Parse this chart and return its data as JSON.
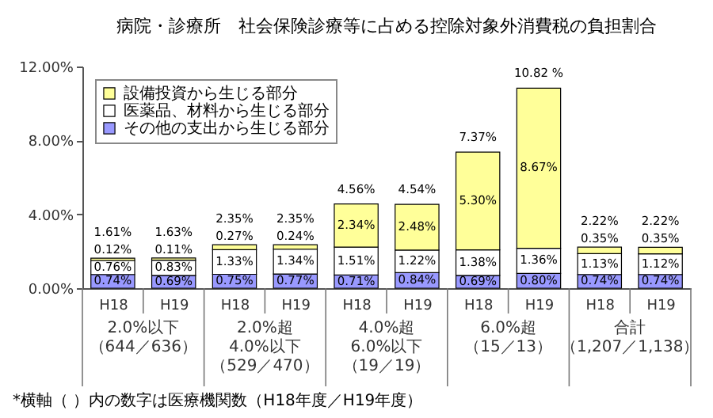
{
  "chart_data": {
    "type": "bar",
    "stacked": true,
    "title": "病院・診療所　社会保険診療等に占める控除対象外消費税の負担割合",
    "categories": [
      "H18",
      "H19",
      "H18",
      "H19",
      "H18",
      "H19",
      "H18",
      "H19",
      "H18",
      "H19"
    ],
    "series": [
      {
        "name": "その他の支出から生じる部分",
        "color": "#9999ff",
        "values": [
          0.74,
          0.69,
          0.75,
          0.77,
          0.71,
          0.84,
          0.69,
          0.8,
          0.74,
          0.74
        ],
        "value_labels": [
          "0.74%",
          "0.69%",
          "0.75%",
          "0.77%",
          "0.71%",
          "0.84%",
          "0.69%",
          "0.80%",
          "0.74%",
          "0.74%"
        ]
      },
      {
        "name": "医薬品、材料から生じる部分",
        "color": "#ffffff",
        "values": [
          0.76,
          0.83,
          1.33,
          1.34,
          1.51,
          1.22,
          1.38,
          1.36,
          1.13,
          1.12
        ],
        "value_labels": [
          "0.76%",
          "0.83%",
          "1.33%",
          "1.34%",
          "1.51%",
          "1.22%",
          "1.38%",
          "1.36%",
          "1.13%",
          "1.12%"
        ]
      },
      {
        "name": "設備投資から生じる部分",
        "color": "#ffff99",
        "values": [
          0.12,
          0.11,
          0.27,
          0.24,
          2.34,
          2.48,
          5.3,
          8.67,
          0.35,
          0.35
        ],
        "value_labels": [
          "0.12%",
          "0.11%",
          "0.27%",
          "0.24%",
          "2.34%",
          "2.48%",
          "5.30%",
          "8.67%",
          "0.35%",
          "0.35%"
        ]
      }
    ],
    "totals": [
      "1.61%",
      "1.63%",
      "2.35%",
      "2.35%",
      "4.56%",
      "4.54%",
      "7.37%",
      "10.82 %",
      "2.22%",
      "2.22%"
    ],
    "ylim": [
      0,
      12
    ],
    "yticks": [
      {
        "value": 0,
        "label": "0.00%"
      },
      {
        "value": 4,
        "label": "4.00%"
      },
      {
        "value": 8,
        "label": "8.00%"
      },
      {
        "value": 12,
        "label": "12.00%"
      }
    ],
    "legend": "top left",
    "annotations": [
      "2.0%以下（644／636）",
      "2.0%超4.0%以下（529／470）",
      "4.0%超6.0%以下（19／19）",
      "6.0%超（15／13）",
      "合計（1,207／1,138）",
      "*横軸（ ）内の数字は医療機関数（H18年度／H19年度）"
    ]
  }
}
